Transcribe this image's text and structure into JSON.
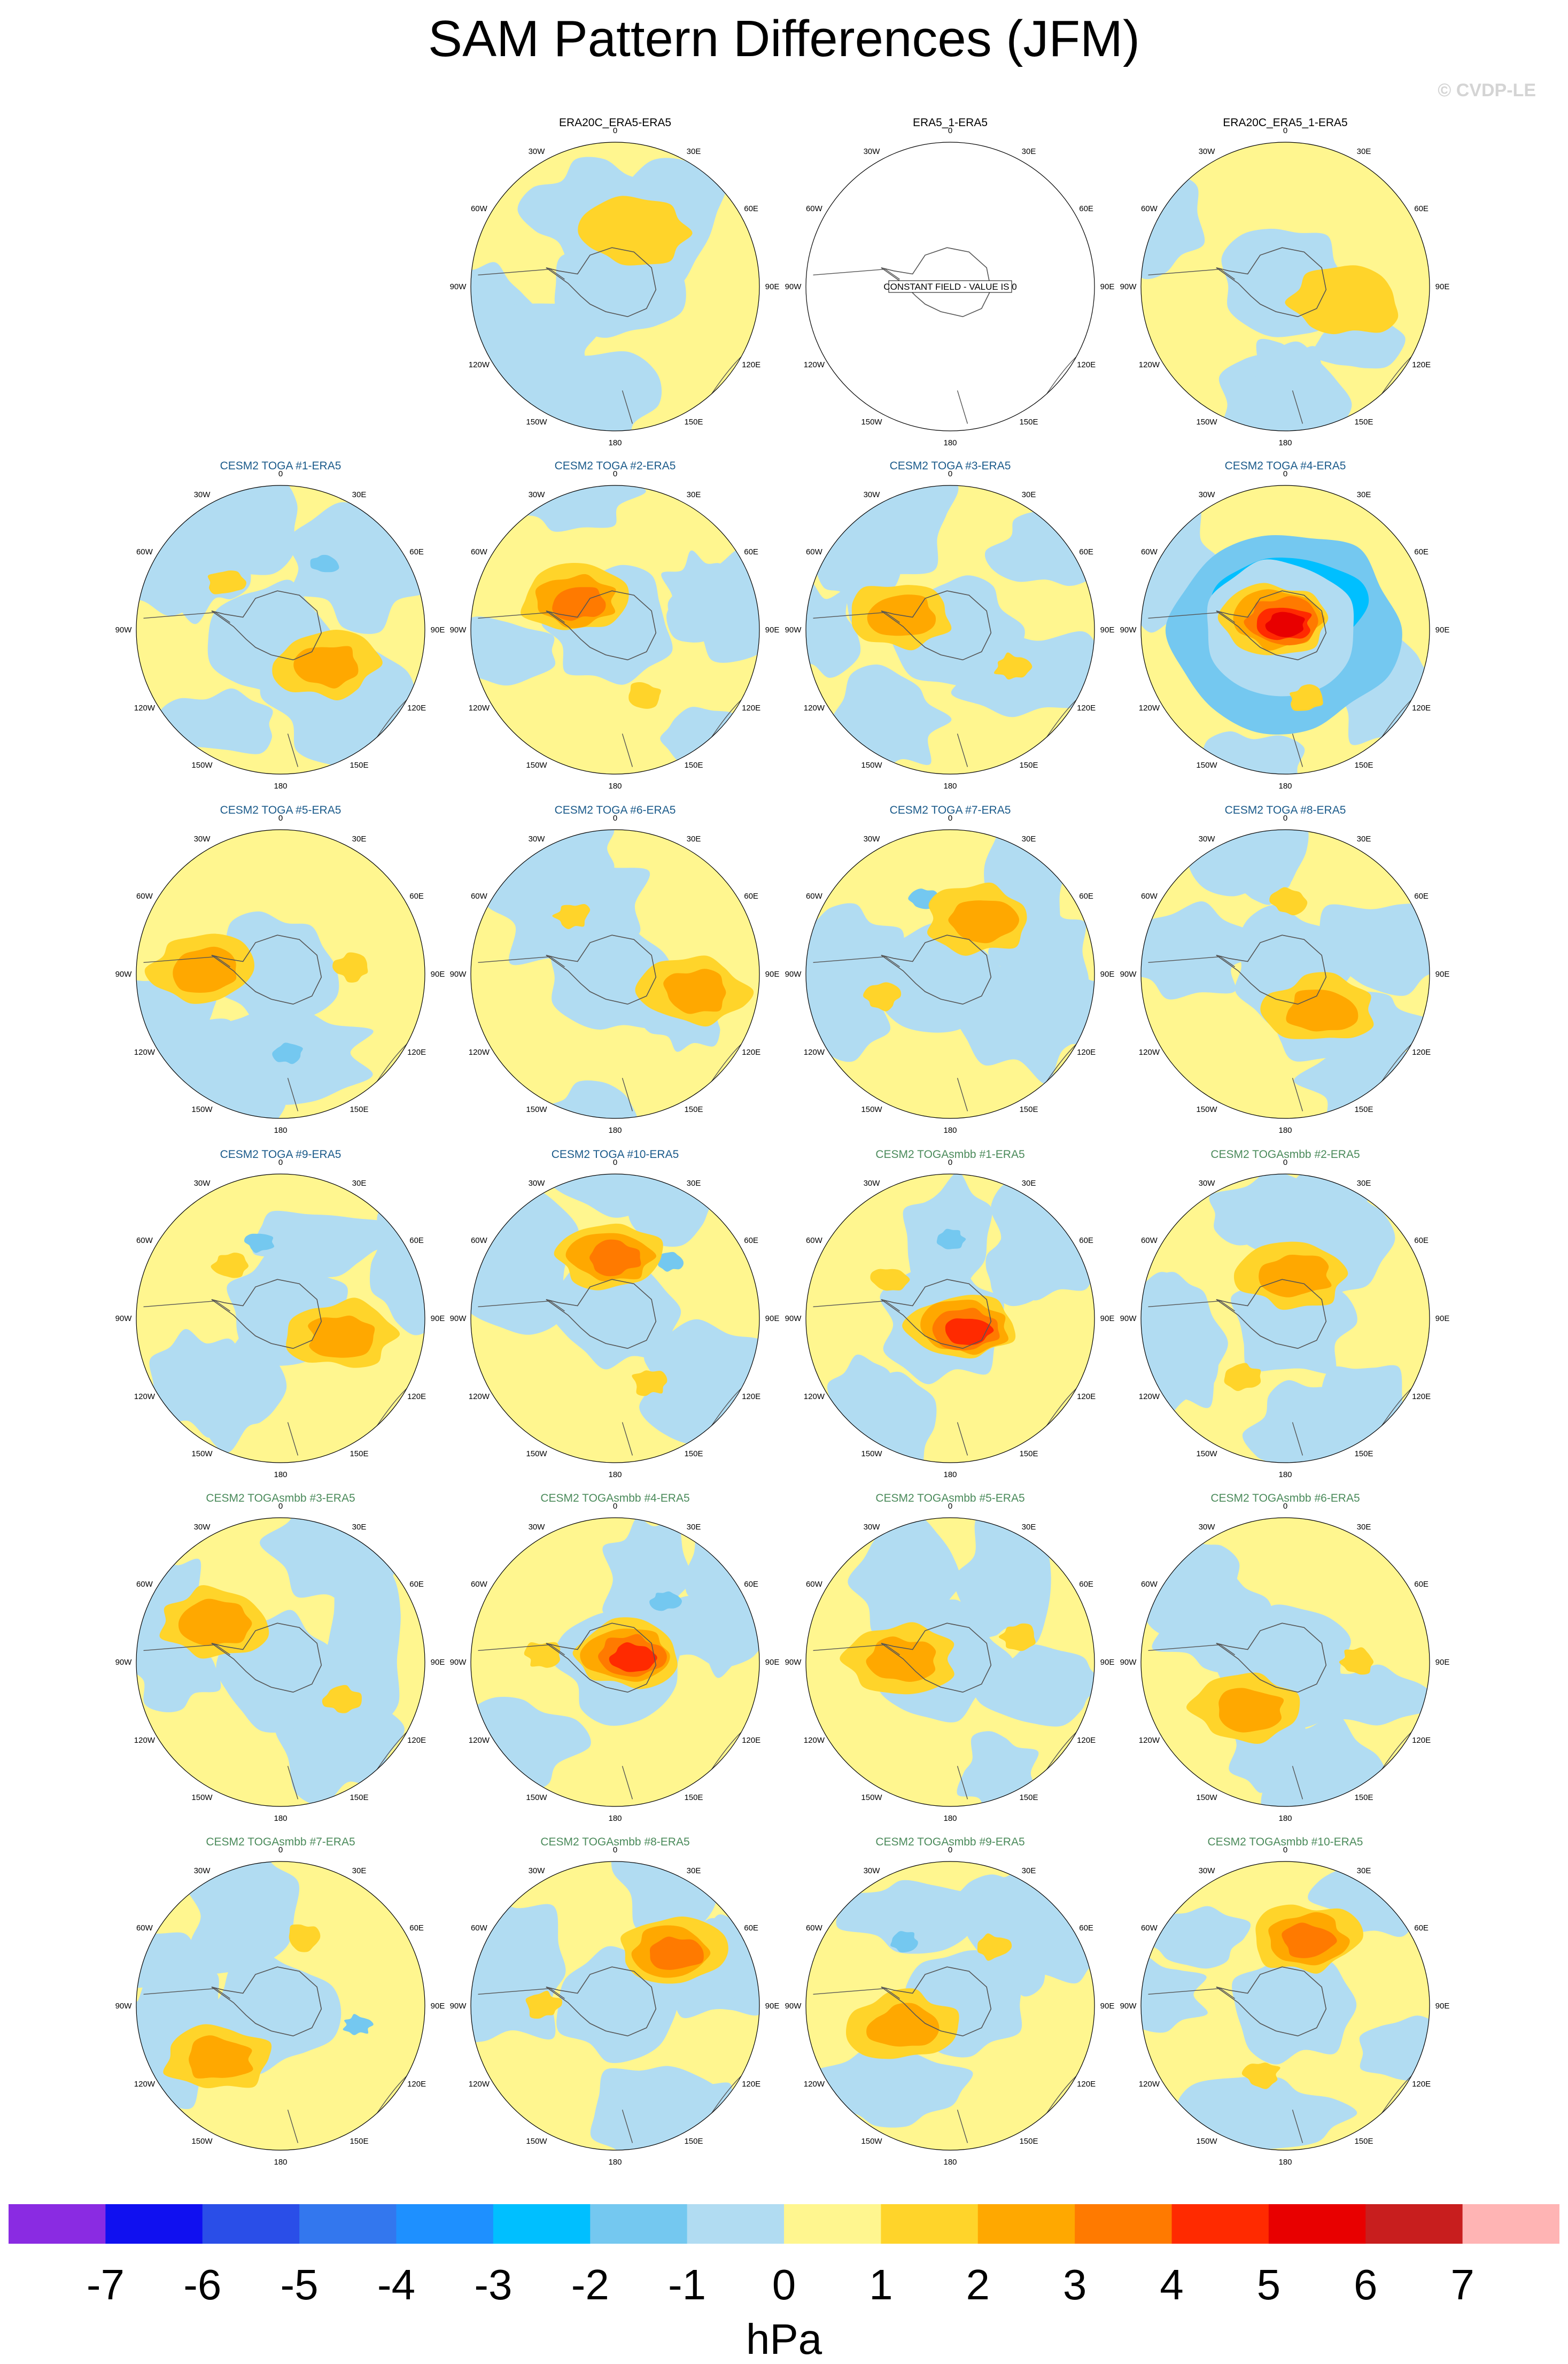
{
  "title": "SAM Pattern Differences (JFM)",
  "credit": "© CVDP-LE",
  "units": "hPa",
  "colors": {
    "yellow": "#fff68f",
    "lightblue": "#b1dcf2",
    "title_obs": "#000000",
    "title_toga": "#1a5a8a",
    "title_smbb": "#4a8a5a"
  },
  "lon_labels": [
    "0",
    "30E",
    "60E",
    "90E",
    "120E",
    "150E",
    "180",
    "150W",
    "120W",
    "90W",
    "60W",
    "30W"
  ],
  "chart_data": {
    "type": "heatmap",
    "projection": "south polar stereographic",
    "contour_levels": [
      -7,
      -6,
      -5,
      -4,
      -3,
      -2,
      -1,
      0,
      1,
      2,
      3,
      4,
      5,
      6,
      7
    ],
    "colorbar_colors": [
      "#8a2be2",
      "#1010f0",
      "#2a4ee8",
      "#3377ee",
      "#1e90ff",
      "#00bfff",
      "#74c8f0",
      "#b1dcf2",
      "#fff68f",
      "#ffd42a",
      "#ffa800",
      "#ff7a00",
      "#ff2a00",
      "#e80000",
      "#c81e1e",
      "#ffb4b4"
    ],
    "colorbar_labels": [
      "-7",
      "-6",
      "-5",
      "-4",
      "-3",
      "-2",
      "-1",
      "0",
      "1",
      "2",
      "3",
      "4",
      "5",
      "6",
      "7"
    ],
    "panels": [
      {
        "title": "ERA20C_ERA5-ERA5",
        "group": "obs",
        "row": 0,
        "col": 1,
        "max_positive": 1,
        "max_negative": -1
      },
      {
        "title": "ERA5_1-ERA5",
        "group": "obs",
        "row": 0,
        "col": 2,
        "constant": true,
        "note": "CONSTANT FIELD - VALUE IS 0"
      },
      {
        "title": "ERA20C_ERA5_1-ERA5",
        "group": "obs",
        "row": 0,
        "col": 3,
        "max_positive": 1,
        "max_negative": -1
      },
      {
        "title": "CESM2 TOGA #1-ERA5",
        "group": "toga",
        "row": 1,
        "col": 0,
        "max_positive": 2,
        "max_negative": -2
      },
      {
        "title": "CESM2 TOGA #2-ERA5",
        "group": "toga",
        "row": 1,
        "col": 1,
        "max_positive": 3,
        "max_negative": -1
      },
      {
        "title": "CESM2 TOGA #3-ERA5",
        "group": "toga",
        "row": 1,
        "col": 2,
        "max_positive": 2,
        "max_negative": -1
      },
      {
        "title": "CESM2 TOGA #4-ERA5",
        "group": "toga",
        "row": 1,
        "col": 3,
        "max_positive": 5,
        "max_negative": -3
      },
      {
        "title": "CESM2 TOGA #5-ERA5",
        "group": "toga",
        "row": 2,
        "col": 0,
        "max_positive": 2,
        "max_negative": -2
      },
      {
        "title": "CESM2 TOGA #6-ERA5",
        "group": "toga",
        "row": 2,
        "col": 1,
        "max_positive": 2,
        "max_negative": -1
      },
      {
        "title": "CESM2 TOGA #7-ERA5",
        "group": "toga",
        "row": 2,
        "col": 2,
        "max_positive": 2,
        "max_negative": -2
      },
      {
        "title": "CESM2 TOGA #8-ERA5",
        "group": "toga",
        "row": 2,
        "col": 3,
        "max_positive": 2,
        "max_negative": -1
      },
      {
        "title": "CESM2 TOGA #9-ERA5",
        "group": "toga",
        "row": 3,
        "col": 0,
        "max_positive": 2,
        "max_negative": -2
      },
      {
        "title": "CESM2 TOGA #10-ERA5",
        "group": "toga",
        "row": 3,
        "col": 1,
        "max_positive": 3,
        "max_negative": -2
      },
      {
        "title": "CESM2 TOGAsmbb #1-ERA5",
        "group": "smbb",
        "row": 3,
        "col": 2,
        "max_positive": 4,
        "max_negative": -2
      },
      {
        "title": "CESM2 TOGAsmbb #2-ERA5",
        "group": "smbb",
        "row": 3,
        "col": 3,
        "max_positive": 2,
        "max_negative": -1
      },
      {
        "title": "CESM2 TOGAsmbb #3-ERA5",
        "group": "smbb",
        "row": 4,
        "col": 0,
        "max_positive": 2,
        "max_negative": -1
      },
      {
        "title": "CESM2 TOGAsmbb #4-ERA5",
        "group": "smbb",
        "row": 4,
        "col": 1,
        "max_positive": 4,
        "max_negative": -2
      },
      {
        "title": "CESM2 TOGAsmbb #5-ERA5",
        "group": "smbb",
        "row": 4,
        "col": 2,
        "max_positive": 2,
        "max_negative": -1
      },
      {
        "title": "CESM2 TOGAsmbb #6-ERA5",
        "group": "smbb",
        "row": 4,
        "col": 3,
        "max_positive": 2,
        "max_negative": -1
      },
      {
        "title": "CESM2 TOGAsmbb #7-ERA5",
        "group": "smbb",
        "row": 5,
        "col": 0,
        "max_positive": 2,
        "max_negative": -2
      },
      {
        "title": "CESM2 TOGAsmbb #8-ERA5",
        "group": "smbb",
        "row": 5,
        "col": 1,
        "max_positive": 3,
        "max_negative": -1
      },
      {
        "title": "CESM2 TOGAsmbb #9-ERA5",
        "group": "smbb",
        "row": 5,
        "col": 2,
        "max_positive": 2,
        "max_negative": -2
      },
      {
        "title": "CESM2 TOGAsmbb #10-ERA5",
        "group": "smbb",
        "row": 5,
        "col": 3,
        "max_positive": 3,
        "max_negative": -1
      }
    ]
  }
}
